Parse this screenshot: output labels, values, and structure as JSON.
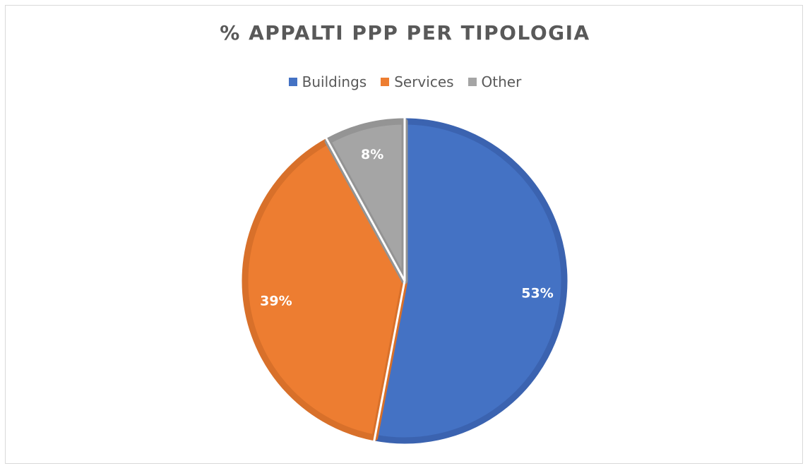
{
  "chart_data": {
    "type": "pie",
    "title": "% APPALTI PPP PER TIPOLOGIA",
    "legend_position": "top",
    "categories": [
      "Buildings",
      "Services",
      "Other"
    ],
    "values": [
      53,
      39,
      8
    ],
    "labels": [
      "53%",
      "39%",
      "8%"
    ],
    "colors": [
      "#4472c4",
      "#ed7d31",
      "#a5a5a5"
    ],
    "border_colors": [
      "#3b63b0",
      "#d8702a",
      "#949494"
    ]
  }
}
